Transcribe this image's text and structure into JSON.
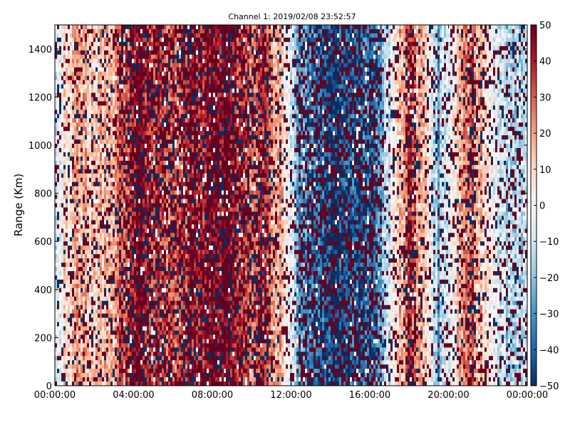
{
  "chart_data": {
    "type": "heatmap",
    "title": "Channel 1: 2019/02/08 23:52:57",
    "xlabel": "",
    "ylabel": "Range (Km)",
    "x_ticks": [
      "00:00:00",
      "04:00:00",
      "08:00:00",
      "12:00:00",
      "16:00:00",
      "20:00:00",
      "00:00:00"
    ],
    "x_range_hours": [
      0,
      24
    ],
    "y_ticks": [
      "0",
      "200",
      "400",
      "600",
      "800",
      "1000",
      "1200",
      "1400"
    ],
    "ylim": [
      0,
      1500
    ],
    "colorbar": {
      "ticks": [
        "−50",
        "−40",
        "−30",
        "−20",
        "−10",
        "0",
        "10",
        "20",
        "30",
        "40",
        "50"
      ],
      "range": [
        -50,
        50
      ],
      "colormap": "RdBu_r"
    },
    "column_profile": {
      "hours": [
        0,
        1.0,
        2.0,
        3.0,
        3.8,
        4.5,
        5.5,
        6.3,
        7.0,
        8.0,
        9.0,
        9.8,
        10.5,
        11.5,
        12.5,
        13.5,
        15.0,
        16.5,
        18.0,
        18.8,
        19.5,
        20.5,
        21.2,
        21.8,
        23.0,
        24.0
      ],
      "values": [
        -5,
        18,
        12,
        20,
        35,
        45,
        32,
        30,
        40,
        45,
        42,
        28,
        35,
        15,
        -30,
        -42,
        -45,
        -30,
        35,
        10,
        -25,
        15,
        30,
        10,
        -15,
        -10
      ]
    },
    "grid": false
  }
}
